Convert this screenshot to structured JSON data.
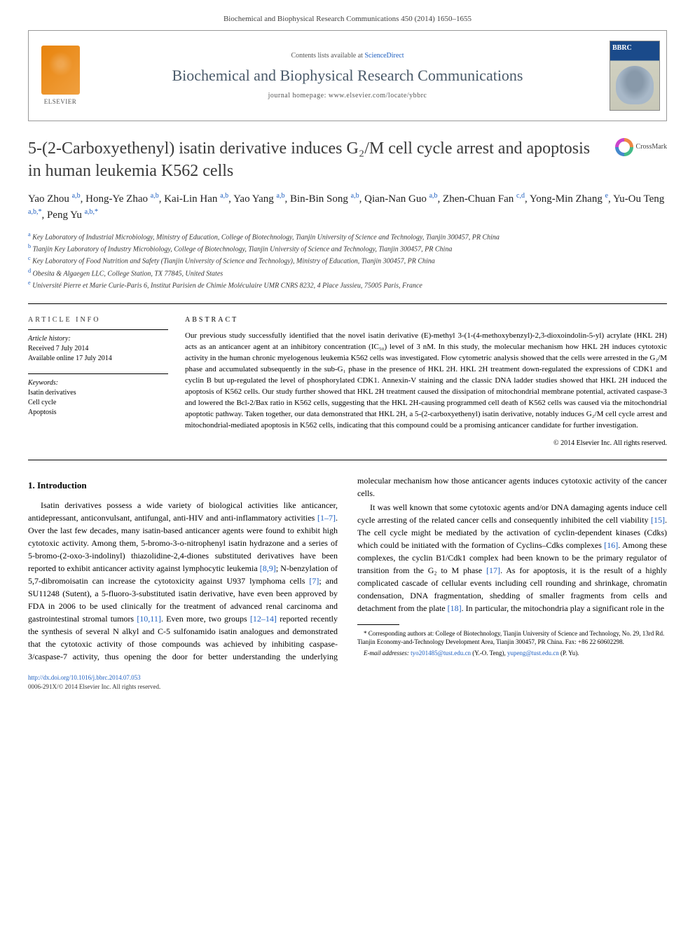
{
  "journal_ref": "Biochemical and Biophysical Research Communications 450 (2014) 1650–1655",
  "header": {
    "contents_prefix": "Contents lists available at ",
    "contents_link": "ScienceDirect",
    "journal_name": "Biochemical and Biophysical Research Communications",
    "homepage_prefix": "journal homepage: ",
    "homepage_link": "www.elsevier.com/locate/ybbrc",
    "publisher": "ELSEVIER"
  },
  "crossmark": "CrossMark",
  "title": "5-(2-Carboxyethenyl) isatin derivative induces G₂/M cell cycle arrest and apoptosis in human leukemia K562 cells",
  "authors_html": "Yao Zhou <sup>a,b</sup>, Hong-Ye Zhao <sup>a,b</sup>, Kai-Lin Han <sup>a,b</sup>, Yao Yang <sup>a,b</sup>, Bin-Bin Song <sup>a,b</sup>, Qian-Nan Guo <sup>a,b</sup>, Zhen-Chuan Fan <sup>c,d</sup>, Yong-Min Zhang <sup>e</sup>, Yu-Ou Teng <sup>a,b,*</sup>, Peng Yu <sup>a,b,*</sup>",
  "affiliations": [
    {
      "sup": "a",
      "text": "Key Laboratory of Industrial Microbiology, Ministry of Education, College of Biotechnology, Tianjin University of Science and Technology, Tianjin 300457, PR China"
    },
    {
      "sup": "b",
      "text": "Tianjin Key Laboratory of Industry Microbiology, College of Biotechnology, Tianjin University of Science and Technology, Tianjin 300457, PR China"
    },
    {
      "sup": "c",
      "text": "Key Laboratory of Food Nutrition and Safety (Tianjin University of Science and Technology), Ministry of Education, Tianjin 300457, PR China"
    },
    {
      "sup": "d",
      "text": "Obesita & Algaegen LLC, College Station, TX 77845, United States"
    },
    {
      "sup": "e",
      "text": "Université Pierre et Marie Curie-Paris 6, Institut Parisien de Chimie Moléculaire UMR CNRS 8232, 4 Place Jussieu, 75005 Paris, France"
    }
  ],
  "article_info": {
    "heading": "ARTICLE INFO",
    "history_label": "Article history:",
    "received": "Received 7 July 2014",
    "available": "Available online 17 July 2014",
    "keywords_label": "Keywords:",
    "keywords": [
      "Isatin derivatives",
      "Cell cycle",
      "Apoptosis"
    ]
  },
  "abstract": {
    "heading": "ABSTRACT",
    "text": "Our previous study successfully identified that the novel isatin derivative (E)-methyl 3-(1-(4-methoxybenzyl)-2,3-dioxoindolin-5-yl) acrylate (HKL 2H) acts as an anticancer agent at an inhibitory concentration (IC₅₀) level of 3 nM. In this study, the molecular mechanism how HKL 2H induces cytotoxic activity in the human chronic myelogenous leukemia K562 cells was investigated. Flow cytometric analysis showed that the cells were arrested in the G₂/M phase and accumulated subsequently in the sub-G₁ phase in the presence of HKL 2H. HKL 2H treatment down-regulated the expressions of CDK1 and cyclin B but up-regulated the level of phosphorylated CDK1. Annexin-V staining and the classic DNA ladder studies showed that HKL 2H induced the apoptosis of K562 cells. Our study further showed that HKL 2H treatment caused the dissipation of mitochondrial membrane potential, activated caspase-3 and lowered the Bcl-2/Bax ratio in K562 cells, suggesting that the HKL 2H-causing programmed cell death of K562 cells was caused via the mitochondrial apoptotic pathway. Taken together, our data demonstrated that HKL 2H, a 5-(2-carboxyethenyl) isatin derivative, notably induces G₂/M cell cycle arrest and mitochondrial-mediated apoptosis in K562 cells, indicating that this compound could be a promising anticancer candidate for further investigation.",
    "copyright": "© 2014 Elsevier Inc. All rights reserved."
  },
  "section1": {
    "heading": "1. Introduction",
    "para1_a": "Isatin derivatives possess a wide variety of biological activities like anticancer, antidepressant, anticonvulsant, antifungal, anti-HIV and anti-inflammatory activities ",
    "ref1": "[1–7]",
    "para1_b": ". Over the last few decades, many isatin-based anticancer agents were found to exhibit high cytotoxic activity. Among them, 5-bromo-3-o-nitrophenyl isatin hydrazone and a series of 5-bromo-(2-oxo-3-indolinyl) thiazolidine-2,4-diones substituted derivatives have been reported to exhibit anticancer activity against lymphocytic leukemia ",
    "ref2": "[8,9]",
    "para1_c": "; N-benzylation of 5,7-dibromoisatin can increase the cytotoxicity against U937 lymphoma cells ",
    "ref3": "[7]",
    "para1_d": "; and SU11248 (Sutent), a 5-fluoro-3-substituted isatin derivative, have even been approved by FDA in 2006 to be used clinically for the treatment of advanced renal ",
    "para2_a": "carcinoma and gastrointestinal stromal tumors ",
    "ref4": "[10,11]",
    "para2_b": ". Even more, two groups ",
    "ref5": "[12–14]",
    "para2_c": " reported recently the synthesis of several N alkyl and C-5 sulfonamido isatin analogues and demonstrated that the cytotoxic activity of those compounds was achieved by inhibiting caspase-3/caspase-7 activity, thus opening the door for better understanding the underlying molecular mechanism how those anticancer agents induces cytotoxic activity of the cancer cells.",
    "para3_a": "It was well known that some cytotoxic agents and/or DNA damaging agents induce cell cycle arresting of the related cancer cells and consequently inhibited the cell viability ",
    "ref6": "[15]",
    "para3_b": ". The cell cycle might be mediated by the activation of cyclin-dependent kinases (Cdks) which could be initiated with the formation of Cyclins–Cdks complexes ",
    "ref7": "[16]",
    "para3_c": ". Among these complexes, the cyclin B1/Cdk1 complex had been known to be the primary regulator of transition from the G₂ to M phase ",
    "ref8": "[17]",
    "para3_d": ". As for apoptosis, it is the result of a highly complicated cascade of cellular events including cell rounding and shrinkage, chromatin condensation, DNA fragmentation, shedding of smaller fragments from cells and detachment from the plate ",
    "ref9": "[18]",
    "para3_e": ". In particular, the mitochondria play a significant role in the"
  },
  "footnotes": {
    "corr": "* Corresponding authors at: College of Biotechnology, Tianjin University of Science and Technology, No. 29, 13rd Rd. Tianjin Economy-and-Technology Development Area, Tianjin 300457, PR China. Fax: +86 22 60602298.",
    "email_label": "E-mail addresses: ",
    "email1": "tyo201485@tust.edu.cn",
    "email1_who": " (Y.-O. Teng), ",
    "email2": "yupeng@tust.edu.cn",
    "email2_who": " (P. Yu)."
  },
  "footer": {
    "doi": "http://dx.doi.org/10.1016/j.bbrc.2014.07.053",
    "issn": "0006-291X/© 2014 Elsevier Inc. All rights reserved."
  },
  "colors": {
    "link": "#2060c0",
    "journal_name": "#4a5a6a",
    "elsevier": "#e8830b"
  }
}
